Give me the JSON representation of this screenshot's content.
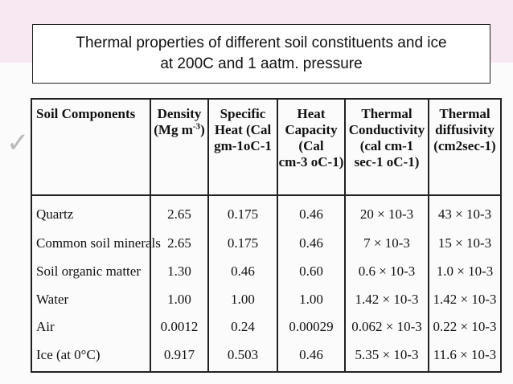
{
  "title": {
    "line1": "Thermal properties of different soil constituents and ice",
    "line2": "at 200C and 1 aatm. pressure"
  },
  "table": {
    "headers": [
      {
        "lines": [
          "Soil Components"
        ]
      },
      {
        "lines": [
          "Density",
          "(Mg m",
          "-3",
          ")"
        ]
      },
      {
        "lines": [
          "Specific",
          "Heat (Cal",
          "gm-1oC-1"
        ]
      },
      {
        "lines": [
          "Heat",
          "Capacity",
          "(Cal",
          "cm-3 oC-1)"
        ]
      },
      {
        "lines": [
          "Thermal",
          "Conductivity",
          "(cal cm-1",
          "sec-1 oC-1)"
        ]
      },
      {
        "lines": [
          "Thermal",
          "diffusivity",
          "(cm2sec-1)"
        ]
      }
    ],
    "rows": [
      {
        "component": "Quartz",
        "density": "2.65",
        "specific_heat": "0.175",
        "heat_capacity": "0.46",
        "conductivity": "20 × 10-3",
        "diffusivity": "43 × 10-3"
      },
      {
        "component": "Common soil minerals",
        "density": "2.65",
        "specific_heat": "0.175",
        "heat_capacity": "0.46",
        "conductivity": "7 × 10-3",
        "diffusivity": "15 × 10-3"
      },
      {
        "component": "Soil organic matter",
        "density": "1.30",
        "specific_heat": "0.46",
        "heat_capacity": "0.60",
        "conductivity": "0.6 × 10-3",
        "diffusivity": "1.0 × 10-3"
      },
      {
        "component": "Water",
        "density": "1.00",
        "specific_heat": "1.00",
        "heat_capacity": "1.00",
        "conductivity": "1.42 × 10-3",
        "diffusivity": "1.42 × 10-3"
      },
      {
        "component": "Air",
        "density": "0.0012",
        "specific_heat": "0.24",
        "heat_capacity": "0.00029",
        "conductivity": "0.062 × 10-3",
        "diffusivity": "0.22 × 10-3"
      },
      {
        "component": "Ice (at 0°C)",
        "density": "0.917",
        "specific_heat": "0.503",
        "heat_capacity": "0.46",
        "conductivity": "5.35 × 10-3",
        "diffusivity": "11.6 × 10-3"
      }
    ]
  }
}
